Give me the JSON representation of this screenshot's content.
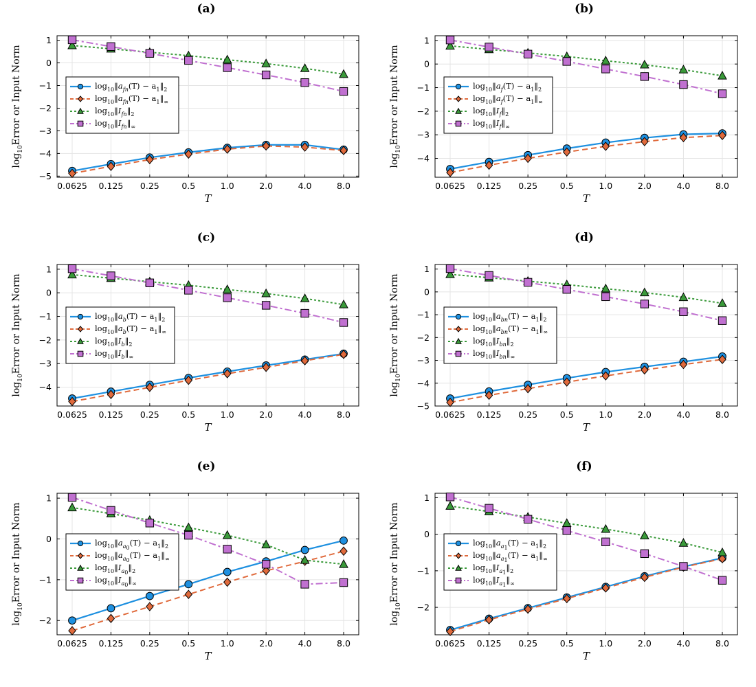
{
  "figure": {
    "ylabel_prefix": "log",
    "ylabel_sub": "10",
    "ylabel_text": "Error or Input Norm",
    "colors": {
      "l2": "#1e90e0",
      "linf": "#e06a3c",
      "I2": "#3a9a3a",
      "Iinf": "#c070d0"
    }
  },
  "chart_data": [
    {
      "type": "line",
      "title": "(a)",
      "subscript": "fn",
      "xlabel": "T",
      "categories": [
        "0.0625",
        "0.125",
        "0.25",
        "0.5",
        "1.0",
        "2.0",
        "4.0",
        "8.0"
      ],
      "ylim": [
        -5.05,
        1.2
      ],
      "yticks": [
        -5,
        -4,
        -3,
        -2,
        -1,
        0,
        1
      ],
      "legend_position": "upper-left",
      "series": [
        {
          "name": "log10‖a_fn(T) − a1‖2",
          "key": "l2",
          "values": [
            -4.77,
            -4.47,
            -4.18,
            -3.95,
            -3.75,
            -3.62,
            -3.62,
            -3.83
          ]
        },
        {
          "name": "log10‖a_fn(T) − a1‖∞",
          "key": "linf",
          "values": [
            -4.88,
            -4.57,
            -4.27,
            -4.03,
            -3.81,
            -3.67,
            -3.72,
            -3.87
          ]
        },
        {
          "name": "log10‖I_fn‖2",
          "key": "I2",
          "values": [
            0.77,
            0.62,
            0.47,
            0.32,
            0.14,
            -0.03,
            -0.24,
            -0.5
          ]
        },
        {
          "name": "log10‖I_fn‖∞",
          "key": "Iinf",
          "values": [
            1.02,
            0.72,
            0.42,
            0.11,
            -0.21,
            -0.53,
            -0.87,
            -1.26
          ]
        }
      ]
    },
    {
      "type": "line",
      "title": "(b)",
      "subscript": "f",
      "xlabel": "T",
      "categories": [
        "0.0625",
        "0.125",
        "0.25",
        "0.5",
        "1.0",
        "2.0",
        "4.0",
        "8.0"
      ],
      "ylim": [
        -4.8,
        1.2
      ],
      "yticks": [
        -4,
        -3,
        -2,
        -1,
        0,
        1
      ],
      "legend_position": "upper-left",
      "series": [
        {
          "name": "log10‖a_f(T) − a1‖2",
          "key": "l2",
          "values": [
            -4.45,
            -4.15,
            -3.86,
            -3.58,
            -3.33,
            -3.13,
            -2.98,
            -2.94
          ]
        },
        {
          "name": "log10‖a_f(T) − a1‖∞",
          "key": "linf",
          "values": [
            -4.6,
            -4.29,
            -4.0,
            -3.73,
            -3.49,
            -3.29,
            -3.12,
            -3.03
          ]
        },
        {
          "name": "log10‖I_f‖2",
          "key": "I2",
          "values": [
            0.77,
            0.62,
            0.47,
            0.32,
            0.14,
            -0.03,
            -0.24,
            -0.5
          ]
        },
        {
          "name": "log10‖I_f‖∞",
          "key": "Iinf",
          "values": [
            1.02,
            0.72,
            0.42,
            0.11,
            -0.21,
            -0.53,
            -0.87,
            -1.26
          ]
        }
      ]
    },
    {
      "type": "line",
      "title": "(c)",
      "subscript": "b",
      "xlabel": "T",
      "categories": [
        "0.0625",
        "0.125",
        "0.25",
        "0.5",
        "1.0",
        "2.0",
        "4.0",
        "8.0"
      ],
      "ylim": [
        -4.8,
        1.2
      ],
      "yticks": [
        -4,
        -3,
        -2,
        -1,
        0,
        1
      ],
      "legend_position": "upper-left",
      "series": [
        {
          "name": "log10‖a_b(T) − a1‖2",
          "key": "l2",
          "values": [
            -4.48,
            -4.19,
            -3.9,
            -3.61,
            -3.34,
            -3.08,
            -2.83,
            -2.58
          ]
        },
        {
          "name": "log10‖a_b(T) − a1‖∞",
          "key": "linf",
          "values": [
            -4.61,
            -4.31,
            -4.01,
            -3.71,
            -3.43,
            -3.16,
            -2.88,
            -2.61
          ]
        },
        {
          "name": "log10‖I_b‖2",
          "key": "I2",
          "values": [
            0.77,
            0.62,
            0.47,
            0.32,
            0.14,
            -0.03,
            -0.24,
            -0.5
          ]
        },
        {
          "name": "log10‖I_b‖∞",
          "key": "Iinf",
          "values": [
            1.02,
            0.72,
            0.42,
            0.11,
            -0.21,
            -0.53,
            -0.87,
            -1.26
          ]
        }
      ]
    },
    {
      "type": "line",
      "title": "(d)",
      "subscript": "bn",
      "xlabel": "T",
      "categories": [
        "0.0625",
        "0.125",
        "0.25",
        "0.5",
        "1.0",
        "2.0",
        "4.0",
        "8.0"
      ],
      "ylim": [
        -5.0,
        1.2
      ],
      "yticks": [
        -5,
        -4,
        -3,
        -2,
        -1,
        0,
        1
      ],
      "legend_position": "upper-left",
      "series": [
        {
          "name": "log10‖a_bn(T) − a1‖2",
          "key": "l2",
          "values": [
            -4.67,
            -4.36,
            -4.07,
            -3.78,
            -3.51,
            -3.28,
            -3.06,
            -2.83
          ]
        },
        {
          "name": "log10‖a_bn(T) − a1‖∞",
          "key": "linf",
          "values": [
            -4.84,
            -4.53,
            -4.24,
            -3.95,
            -3.68,
            -3.42,
            -3.18,
            -2.96
          ]
        },
        {
          "name": "log10‖I_bn‖2",
          "key": "I2",
          "values": [
            0.77,
            0.62,
            0.47,
            0.32,
            0.14,
            -0.03,
            -0.24,
            -0.5
          ]
        },
        {
          "name": "log10‖I_bn‖∞",
          "key": "Iinf",
          "values": [
            1.02,
            0.72,
            0.42,
            0.11,
            -0.21,
            -0.53,
            -0.87,
            -1.26
          ]
        }
      ]
    },
    {
      "type": "line",
      "title": "(e)",
      "subscript": "a",
      "subsub": "0",
      "xlabel": "T",
      "categories": [
        "0.0625",
        "0.125",
        "0.25",
        "0.5",
        "1.0",
        "2.0",
        "4.0",
        "8.0"
      ],
      "ylim": [
        -2.35,
        1.12
      ],
      "yticks": [
        -2,
        -1,
        0,
        1
      ],
      "legend_position": "upper-left",
      "series": [
        {
          "name": "log10‖a_a0(T) − a1‖2",
          "key": "l2",
          "values": [
            -2.0,
            -1.7,
            -1.4,
            -1.11,
            -0.81,
            -0.55,
            -0.27,
            -0.04
          ]
        },
        {
          "name": "log10‖a_a0(T) − a1‖∞",
          "key": "linf",
          "values": [
            -2.25,
            -1.95,
            -1.66,
            -1.36,
            -1.06,
            -0.78,
            -0.55,
            -0.3
          ]
        },
        {
          "name": "log10‖I_a0‖2",
          "key": "I2",
          "values": [
            0.77,
            0.62,
            0.46,
            0.28,
            0.09,
            -0.14,
            -0.52,
            -0.62
          ]
        },
        {
          "name": "log10‖I_a0‖∞",
          "key": "Iinf",
          "values": [
            1.02,
            0.7,
            0.39,
            0.09,
            -0.25,
            -0.62,
            -1.11,
            -1.07
          ]
        }
      ]
    },
    {
      "type": "line",
      "title": "(f)",
      "subscript": "a",
      "subsub": "1",
      "xlabel": "T",
      "categories": [
        "0.0625",
        "0.125",
        "0.25",
        "0.5",
        "1.0",
        "2.0",
        "4.0",
        "8.0"
      ],
      "ylim": [
        -2.75,
        1.12
      ],
      "yticks": [
        -2,
        -1,
        0,
        1
      ],
      "legend_position": "upper-left",
      "series": [
        {
          "name": "log10‖a_a1(T) − a1‖2",
          "key": "l2",
          "values": [
            -2.62,
            -2.31,
            -2.02,
            -1.73,
            -1.44,
            -1.15,
            -0.89,
            -0.65
          ]
        },
        {
          "name": "log10‖a_a1(T) − a1‖∞",
          "key": "linf",
          "values": [
            -2.66,
            -2.34,
            -2.05,
            -1.76,
            -1.47,
            -1.18,
            -0.9,
            -0.67
          ]
        },
        {
          "name": "log10‖I_a1‖2",
          "key": "I2",
          "values": [
            0.77,
            0.62,
            0.47,
            0.3,
            0.14,
            -0.04,
            -0.24,
            -0.5
          ]
        },
        {
          "name": "log10‖I_a1‖∞",
          "key": "Iinf",
          "values": [
            1.02,
            0.71,
            0.41,
            0.1,
            -0.21,
            -0.53,
            -0.88,
            -1.26
          ]
        }
      ]
    }
  ]
}
